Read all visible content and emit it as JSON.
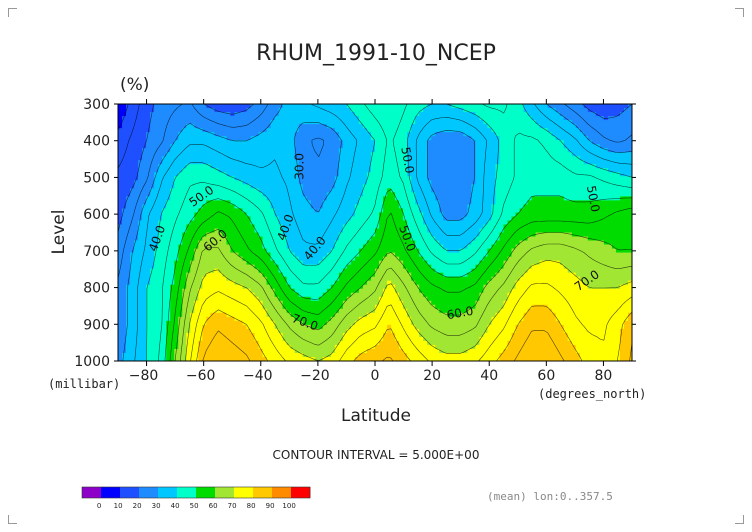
{
  "chart_data": {
    "type": "heatmap",
    "title": "RHUM_1991-10_NCEP",
    "units": "(%)",
    "xlabel": "Latitude",
    "ylabel": "Level",
    "y_units": "(millibar)",
    "x_units": "(degrees_north)",
    "x_ticks": [
      -80,
      -60,
      -40,
      -20,
      0,
      20,
      40,
      60,
      80
    ],
    "y_ticks": [
      300,
      400,
      500,
      600,
      700,
      800,
      900,
      1000
    ],
    "xlim": [
      -90,
      90
    ],
    "ylim": [
      1000,
      300
    ],
    "y_reversed": true,
    "lat": [
      -90,
      -85,
      -80,
      -75,
      -70,
      -65,
      -60,
      -55,
      -50,
      -45,
      -40,
      -35,
      -30,
      -25,
      -20,
      -15,
      -10,
      -5,
      0,
      5,
      10,
      15,
      20,
      25,
      30,
      35,
      40,
      45,
      50,
      55,
      60,
      65,
      70,
      75,
      80,
      85,
      90
    ],
    "levels": [
      300,
      400,
      500,
      600,
      700,
      800,
      900,
      1000
    ],
    "rhum": [
      [
        5,
        12,
        18,
        22,
        24,
        26,
        20,
        17,
        16,
        18,
        22,
        28,
        32,
        34,
        36,
        38,
        40,
        44,
        48,
        50,
        46,
        42,
        40,
        40,
        42,
        44,
        46,
        46,
        42,
        36,
        30,
        26,
        22,
        18,
        16,
        18,
        20
      ],
      [
        12,
        16,
        20,
        24,
        30,
        34,
        34,
        32,
        30,
        30,
        32,
        34,
        32,
        26,
        24,
        26,
        32,
        36,
        40,
        46,
        42,
        34,
        28,
        26,
        26,
        30,
        36,
        42,
        46,
        46,
        44,
        40,
        36,
        30,
        26,
        24,
        26
      ],
      [
        16,
        18,
        24,
        34,
        40,
        44,
        44,
        42,
        40,
        38,
        36,
        36,
        34,
        28,
        26,
        28,
        34,
        38,
        42,
        48,
        44,
        34,
        28,
        26,
        26,
        30,
        38,
        42,
        46,
        48,
        48,
        48,
        46,
        46,
        44,
        42,
        40
      ],
      [
        18,
        24,
        34,
        40,
        44,
        48,
        52,
        56,
        54,
        50,
        46,
        40,
        36,
        32,
        30,
        34,
        38,
        42,
        46,
        56,
        50,
        42,
        34,
        28,
        28,
        32,
        38,
        46,
        50,
        52,
        52,
        52,
        52,
        52,
        54,
        56,
        58
      ],
      [
        22,
        30,
        36,
        42,
        48,
        56,
        66,
        66,
        60,
        56,
        52,
        46,
        40,
        36,
        36,
        40,
        46,
        50,
        54,
        60,
        56,
        50,
        44,
        40,
        40,
        44,
        50,
        56,
        62,
        66,
        68,
        68,
        66,
        64,
        62,
        60,
        60
      ],
      [
        26,
        32,
        40,
        44,
        52,
        64,
        72,
        74,
        72,
        70,
        66,
        58,
        50,
        46,
        46,
        50,
        56,
        60,
        64,
        72,
        66,
        60,
        56,
        54,
        54,
        56,
        62,
        66,
        72,
        76,
        76,
        74,
        72,
        70,
        70,
        70,
        72
      ],
      [
        26,
        32,
        40,
        44,
        56,
        70,
        80,
        84,
        82,
        80,
        76,
        70,
        64,
        60,
        58,
        62,
        68,
        72,
        74,
        80,
        74,
        68,
        64,
        62,
        62,
        64,
        70,
        74,
        80,
        84,
        84,
        80,
        76,
        74,
        74,
        78,
        84
      ],
      [
        28,
        34,
        40,
        46,
        60,
        74,
        86,
        90,
        88,
        86,
        82,
        78,
        74,
        72,
        70,
        72,
        78,
        82,
        84,
        86,
        82,
        78,
        74,
        72,
        72,
        74,
        78,
        82,
        86,
        90,
        90,
        86,
        82,
        78,
        76,
        80,
        86
      ]
    ],
    "contour_interval_text": "CONTOUR INTERVAL = 5.000E+00",
    "contour_labels": [
      "30.0",
      "40.0",
      "50.0",
      "60.0",
      "70.0",
      "40.0",
      "40.0",
      "50.0",
      "50.0",
      "60.0",
      "70.0",
      "50.0"
    ],
    "colorbar": {
      "ticks": [
        "0",
        "10",
        "20",
        "30",
        "40",
        "50",
        "60",
        "70",
        "80",
        "90",
        "100"
      ],
      "colors": [
        "#8c00c8",
        "#0000ff",
        "#1e50ff",
        "#1e8cff",
        "#00c8ff",
        "#00ffc8",
        "#00dc00",
        "#a0e632",
        "#ffff00",
        "#ffc800",
        "#ff8c00",
        "#ff0000"
      ]
    },
    "footnote": "(mean) lon:0..357.5"
  }
}
